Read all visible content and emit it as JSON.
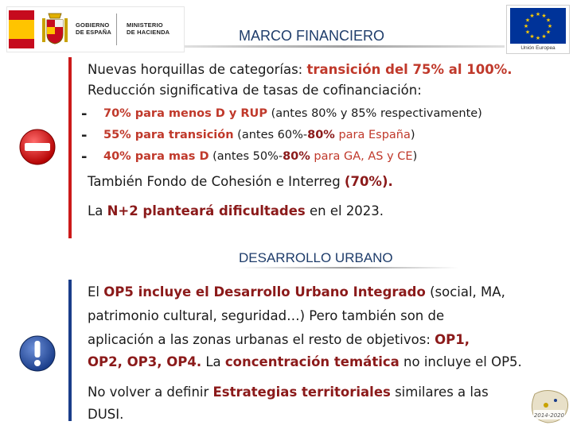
{
  "header": {
    "gov_line1": "GOBIERNO",
    "gov_line2": "DE ESPAÑA",
    "min_line1": "MINISTERIO",
    "min_line2": "DE HACIENDA",
    "title": "MARCO FINANCIERO",
    "eu_label": "Unión Europea"
  },
  "icons": {
    "stop": "no-entry-icon",
    "info": "exclamation-icon"
  },
  "section1": {
    "line1_a": "Nuevas horquillas de categorías: ",
    "line1_b": "transición del 75% al 100%.",
    "line2": "Reducción significativa de tasas de cofinanciación:",
    "bullets": [
      {
        "dash": "-",
        "hl": "70% para menos D y RUP",
        "rest": " (antes 80% y 85% respectivamente)"
      },
      {
        "dash": "-",
        "hl": "55% para transición",
        "rest_a": " (antes 60%-",
        "hl2": "80%",
        "hl3": " para España",
        "rest_b": ")"
      },
      {
        "dash": "-",
        "hl": "40% para mas D",
        "rest_a": " (antes 50%-",
        "hl2": "80%",
        "hl3": " para GA, AS y CE",
        "rest_b": ")"
      }
    ],
    "line3_a": "También Fondo de Cohesión e Interreg ",
    "line3_b": "(70%).",
    "line4_a": "La ",
    "line4_b": "N+2 planteará dificultades",
    "line4_c": " en el  2023."
  },
  "section2": {
    "title": "DESARROLLO URBANO",
    "p1_a": "El ",
    "p1_b": "OP5 incluye el Desarrollo Urbano Integrado",
    "p1_c": " (social, MA,",
    "p2": "patrimonio cultural, seguridad…) Pero también son de",
    "p3_a": "aplicación a las zonas urbanas el resto de objetivos: ",
    "p3_b": "OP1,",
    "p4_a": "OP2, OP3, OP4.",
    "p4_b": " La ",
    "p4_c": "concentración temática",
    "p4_d": " no incluye el OP5.",
    "p5_a": "No volver a definir ",
    "p5_b": "Estrategias territoriales",
    "p5_c": " similares a las",
    "p6": "DUSI."
  },
  "corner": {
    "label": "2014-2020"
  },
  "colors": {
    "accent_red": "#c0392b",
    "accent_darkred": "#8b1a1a",
    "title_blue": "#1f3d6b",
    "bar_red": "#cc1a1a",
    "bar_blue": "#1a3d8a"
  }
}
